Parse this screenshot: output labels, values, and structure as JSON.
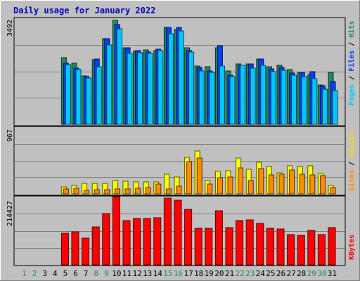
{
  "chart_data": [
    {
      "type": "bar",
      "title": "Daily usage for January 2022",
      "panel": "hits-files-pages",
      "y_max_label": "3492",
      "ylim": [
        0,
        3492
      ],
      "categories": [
        "1",
        "2",
        "3",
        "4",
        "5",
        "6",
        "7",
        "8",
        "9",
        "10",
        "11",
        "12",
        "13",
        "14",
        "15",
        "16",
        "17",
        "18",
        "19",
        "20",
        "21",
        "22",
        "23",
        "24",
        "25",
        "26",
        "27",
        "28",
        "29",
        "30",
        "31"
      ],
      "weekend_days": [
        "1",
        "2",
        "8",
        "9",
        "15",
        "16",
        "22",
        "23",
        "29",
        "30"
      ],
      "series": [
        {
          "name": "Hits",
          "color": "#228b5a",
          "values": [
            0,
            0,
            0,
            0,
            2200,
            2020,
            1600,
            2130,
            2810,
            3430,
            2510,
            2410,
            2460,
            2420,
            3200,
            3130,
            2520,
            1930,
            1890,
            2530,
            1760,
            2000,
            2000,
            2150,
            1900,
            1950,
            1800,
            1700,
            1640,
            1290,
            1710
          ]
        },
        {
          "name": "Files",
          "color": "#0040ff",
          "values": [
            0,
            0,
            0,
            0,
            2020,
            1840,
            1570,
            2140,
            2830,
            3290,
            2520,
            2420,
            2390,
            2480,
            3180,
            3190,
            2420,
            1880,
            1760,
            2600,
            1630,
            1950,
            2000,
            2150,
            1820,
            1870,
            1690,
            1700,
            1730,
            1270,
            1420
          ]
        },
        {
          "name": "Pages",
          "color": "#00c8ff",
          "values": [
            0,
            0,
            0,
            0,
            1970,
            1800,
            1530,
            1900,
            2620,
            3150,
            2330,
            2360,
            2330,
            2420,
            2980,
            3070,
            2380,
            1760,
            1710,
            1920,
            1570,
            1940,
            1850,
            1940,
            1730,
            1770,
            1620,
            1570,
            1500,
            1150,
            1120
          ]
        }
      ]
    },
    {
      "type": "bar",
      "panel": "sites-visits",
      "y_max_label": "967",
      "ylim": [
        0,
        967
      ],
      "categories": [
        "1",
        "2",
        "3",
        "4",
        "5",
        "6",
        "7",
        "8",
        "9",
        "10",
        "11",
        "12",
        "13",
        "14",
        "15",
        "16",
        "17",
        "18",
        "19",
        "20",
        "21",
        "22",
        "23",
        "24",
        "25",
        "26",
        "27",
        "28",
        "29",
        "30",
        "31"
      ],
      "series": [
        {
          "name": "Sites",
          "color": "#ffff00",
          "values": [
            0,
            0,
            0,
            0,
            100,
            120,
            150,
            150,
            150,
            195,
            180,
            170,
            170,
            170,
            285,
            245,
            530,
            625,
            195,
            330,
            335,
            520,
            355,
            455,
            395,
            305,
            410,
            395,
            410,
            300,
            120
          ]
        },
        {
          "name": "Visits",
          "color": "#ff8c00",
          "values": [
            0,
            0,
            0,
            0,
            70,
            80,
            55,
            65,
            65,
            70,
            70,
            80,
            95,
            140,
            75,
            110,
            465,
            515,
            140,
            230,
            240,
            375,
            190,
            370,
            275,
            285,
            345,
            285,
            270,
            265,
            95
          ]
        }
      ]
    },
    {
      "type": "bar",
      "panel": "kbytes",
      "y_max_label": "214427",
      "ylim": [
        0,
        214427
      ],
      "categories": [
        "1",
        "2",
        "3",
        "4",
        "5",
        "6",
        "7",
        "8",
        "9",
        "10",
        "11",
        "12",
        "13",
        "14",
        "15",
        "16",
        "17",
        "18",
        "19",
        "20",
        "21",
        "22",
        "23",
        "24",
        "25",
        "26",
        "27",
        "28",
        "29",
        "30",
        "31"
      ],
      "series": [
        {
          "name": "KBytes",
          "color": "#ff0000",
          "values": [
            0,
            0,
            0,
            0,
            100000,
            103000,
            84000,
            119000,
            161000,
            214427,
            140000,
            147000,
            145000,
            149000,
            209000,
            204000,
            174000,
            116000,
            115000,
            170000,
            117000,
            140000,
            142000,
            130000,
            115000,
            112000,
            95000,
            92000,
            109000,
            95000,
            118000
          ]
        }
      ]
    }
  ]
}
